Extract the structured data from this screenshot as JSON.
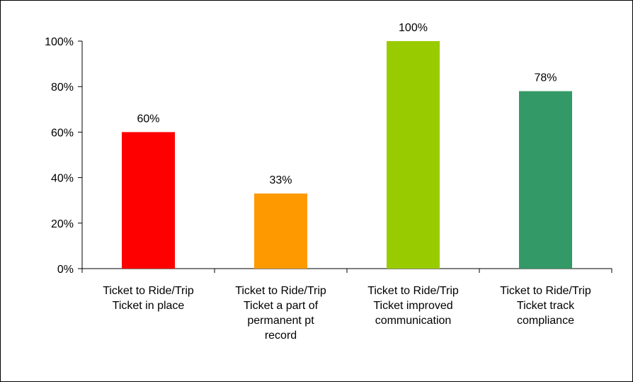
{
  "chart_data": {
    "type": "bar",
    "title": "",
    "xlabel": "",
    "ylabel": "",
    "ylim": [
      0,
      100
    ],
    "yticks": [
      "0%",
      "20%",
      "40%",
      "60%",
      "80%",
      "100%"
    ],
    "ytick_values": [
      0,
      20,
      40,
      60,
      80,
      100
    ],
    "grid": false,
    "legend": "none",
    "categories": [
      [
        "Ticket to Ride/Trip",
        "Ticket in place"
      ],
      [
        "Ticket to Ride/Trip",
        "Ticket a part of",
        "permanent pt",
        "record"
      ],
      [
        "Ticket to Ride/Trip",
        "Ticket improved",
        "communication"
      ],
      [
        "Ticket to Ride/Trip",
        "Ticket track",
        "compliance"
      ]
    ],
    "values": [
      60,
      33,
      100,
      78
    ],
    "data_labels": [
      "60%",
      "33%",
      "100%",
      "78%"
    ],
    "colors": [
      "#ff0000",
      "#ff9900",
      "#99cc00",
      "#339966"
    ]
  }
}
